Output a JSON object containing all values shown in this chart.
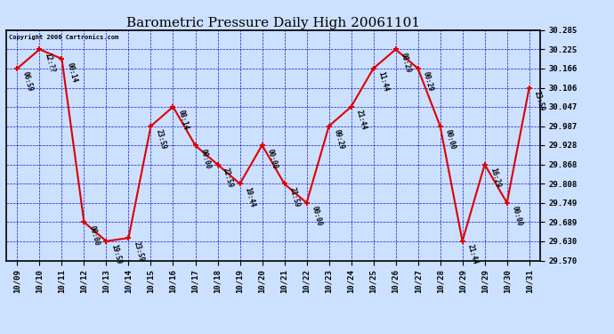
{
  "title": "Barometric Pressure Daily High 20061101",
  "copyright": "Copyright 2006 Cartronics.com",
  "x_labels": [
    "10/09",
    "10/10",
    "10/11",
    "10/12",
    "10/13",
    "10/14",
    "10/15",
    "10/16",
    "10/17",
    "10/18",
    "10/19",
    "10/20",
    "10/21",
    "10/22",
    "10/23",
    "10/24",
    "10/25",
    "10/26",
    "10/27",
    "10/28",
    "10/29",
    "10/29",
    "10/30",
    "10/31"
  ],
  "y_values": [
    30.166,
    30.225,
    30.196,
    29.689,
    29.63,
    29.64,
    29.987,
    30.047,
    29.927,
    29.868,
    29.808,
    29.928,
    29.808,
    29.749,
    29.987,
    30.047,
    30.166,
    30.225,
    30.166,
    29.987,
    29.63,
    29.868,
    29.749,
    30.106
  ],
  "time_labels": [
    "06:59",
    "12:??",
    "00:14",
    "00:00",
    "19:59",
    "23:59",
    "23:59",
    "08:14",
    "00:00",
    "22:59",
    "10:44",
    "00:00",
    "21:59",
    "00:00",
    "09:29",
    "21:44",
    "11:44",
    "08:29",
    "00:29",
    "00:00",
    "21:44",
    "16:29",
    "00:00",
    "23:59"
  ],
  "ylim_min": 29.57,
  "ylim_max": 30.285,
  "yticks": [
    29.57,
    29.63,
    29.689,
    29.749,
    29.808,
    29.868,
    29.928,
    29.987,
    30.047,
    30.106,
    30.166,
    30.225,
    30.285
  ],
  "line_color": "#dd0000",
  "marker_color": "#dd0000",
  "bg_color": "#cce0ff",
  "grid_color": "#0000cc",
  "border_color": "#000000",
  "title_fontsize": 11,
  "tick_fontsize": 6.5,
  "annotation_fontsize": 5.5
}
